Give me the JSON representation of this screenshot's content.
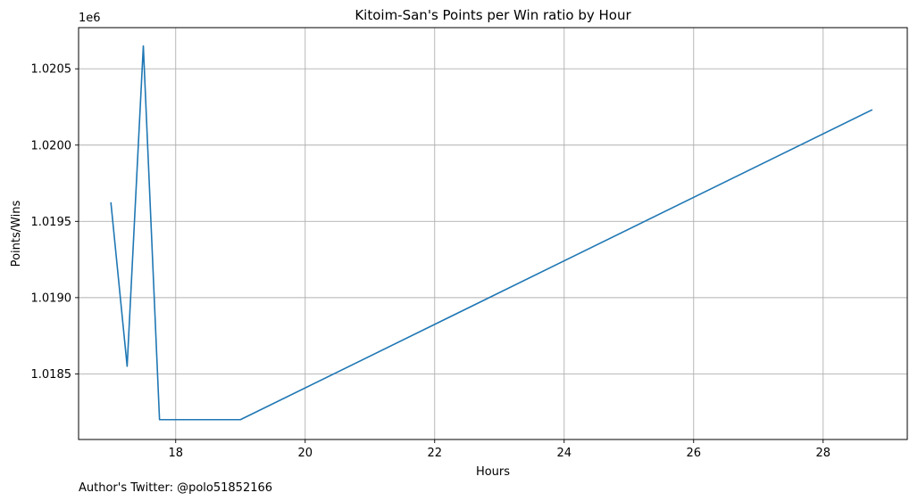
{
  "chart_data": {
    "type": "line",
    "title": "Kitoim-San's Points per Win ratio by Hour",
    "xlabel": "Hours",
    "ylabel": "Points/Wins",
    "y_offset_label": "1e6",
    "footnote": "Author's Twitter: @polo51852166",
    "xlim": [
      16.5,
      29.3
    ],
    "ylim": [
      1.01807,
      1.02077
    ],
    "x_ticks": [
      18,
      20,
      22,
      24,
      26,
      28
    ],
    "x_tick_labels": [
      "18",
      "20",
      "22",
      "24",
      "26",
      "28"
    ],
    "y_ticks": [
      1.0185,
      1.019,
      1.0195,
      1.02,
      1.0205
    ],
    "y_tick_labels": [
      "1.0185",
      "1.0190",
      "1.0195",
      "1.0200",
      "1.0205"
    ],
    "grid": true,
    "colors": {
      "line": "#1f77b4"
    },
    "series": [
      {
        "x": [
          17.0,
          17.25,
          17.5,
          17.75,
          19.0,
          28.75
        ],
        "y": [
          1.01962,
          1.01855,
          1.02065,
          1.0182,
          1.0182,
          1.02023
        ]
      }
    ]
  }
}
